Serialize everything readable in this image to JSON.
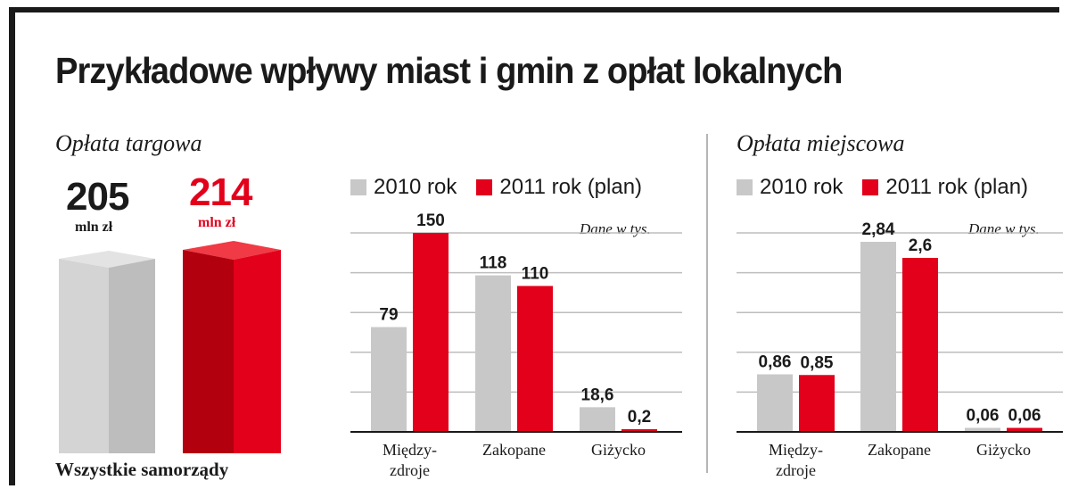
{
  "title": "Przykładowe wpływy miast i gmin z opłat lokalnych",
  "colors": {
    "grey": "#c8c8c8",
    "red": "#e3001b",
    "dark": "#1a1a1a"
  },
  "left_panel": {
    "section_title": "Opłata targowa",
    "values": [
      {
        "value": "205",
        "unit": "mln zł",
        "color": "#1a1a1a"
      },
      {
        "value": "214",
        "unit": "mln zł",
        "color": "#e3001b"
      }
    ],
    "footer": "Wszystkie samorządy"
  },
  "right_panel": {
    "section_title": "Opłata miejscowa"
  },
  "chart_data": [
    {
      "type": "bar",
      "title": "Opłata targowa",
      "legend": [
        "2010 rok",
        "2011 rok (plan)"
      ],
      "legend_placement": "top",
      "note": "Dane w tys.",
      "categories": [
        [
          "Między-",
          "zdroje"
        ],
        [
          "Zakopane"
        ],
        [
          "Giżycko"
        ]
      ],
      "series": [
        {
          "name": "2010 rok",
          "values": [
            79,
            118,
            18.6
          ],
          "labels": [
            "79",
            "118",
            "18,6"
          ],
          "color": "#c8c8c8"
        },
        {
          "name": "2011 rok (plan)",
          "values": [
            150,
            110,
            0.2
          ],
          "labels": [
            "150",
            "110",
            "0,2"
          ],
          "color": "#e3001b"
        }
      ],
      "ylim": [
        0,
        150
      ],
      "grid": true
    },
    {
      "type": "bar",
      "title": "Opłata miejscowa",
      "legend": [
        "2010 rok",
        "2011 rok (plan)"
      ],
      "legend_placement": "top",
      "note": "Dane w tys.",
      "categories": [
        [
          "Między-",
          "zdroje"
        ],
        [
          "Zakopane"
        ],
        [
          "Giżycko"
        ]
      ],
      "series": [
        {
          "name": "2010 rok",
          "values": [
            0.86,
            2.84,
            0.06
          ],
          "labels": [
            "0,86",
            "2,84",
            "0,06"
          ],
          "color": "#c8c8c8"
        },
        {
          "name": "2011 rok (plan)",
          "values": [
            0.85,
            2.6,
            0.06
          ],
          "labels": [
            "0,85",
            "2,6",
            "0,06"
          ],
          "color": "#e3001b"
        }
      ],
      "ylim": [
        0,
        2.84
      ],
      "grid": true
    }
  ]
}
